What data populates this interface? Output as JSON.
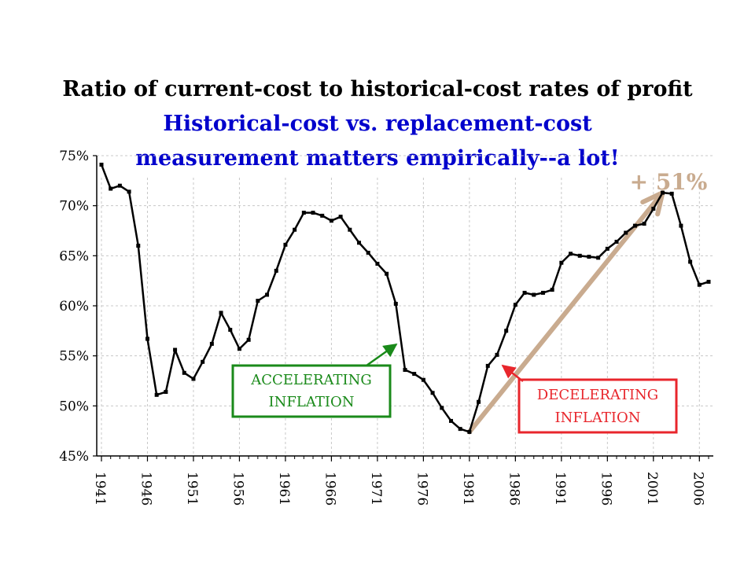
{
  "title": "Ratio of current-cost to historical-cost rates of profit",
  "subtitle_line1": "Historical-cost vs. replacement-cost",
  "subtitle_line2": "measurement matters empirically--a lot!",
  "colors": {
    "title": "#000000",
    "subtitle": "#0000cc",
    "accelerating": "#1a8a1a",
    "decelerating": "#e8262c",
    "trend_arrow": "#c9ab8f",
    "line": "#000000"
  },
  "annotations": {
    "accelerating_line1": "ACCELERATING",
    "accelerating_line2": "INFLATION",
    "decelerating_line1": "DECELERATING",
    "decelerating_line2": "INFLATION",
    "trend_label": "+ 51%"
  },
  "chart_data": {
    "type": "line",
    "title": "Ratio of current-cost to historical-cost rates of profit",
    "xlabel": "",
    "ylabel": "",
    "xlim": [
      1941,
      2007
    ],
    "ylim": [
      45,
      75
    ],
    "yticks": [
      "45%",
      "50%",
      "55%",
      "60%",
      "65%",
      "70%",
      "75%"
    ],
    "ytick_values": [
      45,
      50,
      55,
      60,
      65,
      70,
      75
    ],
    "xticks": [
      "1941",
      "1946",
      "1951",
      "1956",
      "1961",
      "1966",
      "1971",
      "1976",
      "1981",
      "1986",
      "1991",
      "1996",
      "2001",
      "2006"
    ],
    "xtick_values": [
      1941,
      1946,
      1951,
      1956,
      1961,
      1966,
      1971,
      1976,
      1981,
      1986,
      1991,
      1996,
      2001,
      2006
    ],
    "grid": true,
    "series": [
      {
        "x": [
          1941,
          1942,
          1943,
          1944,
          1945,
          1946,
          1947,
          1948,
          1949,
          1950,
          1951,
          1952,
          1953,
          1954,
          1955,
          1956,
          1957,
          1958,
          1959,
          1960,
          1961,
          1962,
          1963,
          1964,
          1965,
          1966,
          1967,
          1968,
          1969,
          1970,
          1971,
          1972,
          1973,
          1974,
          1975,
          1976,
          1977,
          1978,
          1979,
          1980,
          1981,
          1982,
          1983,
          1984,
          1985,
          1986,
          1987,
          1988,
          1989,
          1990,
          1991,
          1992,
          1993,
          1994,
          1995,
          1996,
          1997,
          1998,
          1999,
          2000,
          2001,
          2002,
          2003,
          2004,
          2005,
          2006,
          2007
        ],
        "values": [
          74.1,
          71.7,
          72.0,
          71.4,
          66.0,
          56.7,
          51.1,
          51.4,
          55.6,
          53.3,
          52.7,
          54.4,
          56.2,
          59.3,
          57.6,
          55.7,
          56.6,
          60.5,
          61.1,
          63.5,
          66.1,
          67.6,
          69.3,
          69.3,
          69.0,
          68.5,
          68.9,
          67.6,
          66.3,
          65.3,
          64.2,
          63.2,
          60.2,
          53.6,
          53.2,
          52.6,
          51.3,
          49.8,
          48.5,
          47.7,
          47.4,
          50.4,
          54.0,
          55.1,
          57.5,
          60.1,
          61.3,
          61.1,
          61.3,
          61.6,
          64.3,
          65.2,
          65.0,
          64.9,
          64.8,
          65.7,
          66.4,
          67.3,
          68.0,
          68.2,
          69.7,
          71.3,
          71.2,
          68.0,
          64.4,
          62.1,
          62.4
        ]
      }
    ],
    "annotations": [
      {
        "text": "ACCELERATING INFLATION",
        "points_to": [
          1974,
          56.3
        ]
      },
      {
        "text": "DECELERATING INFLATION",
        "points_to": [
          1984,
          54.0
        ]
      },
      {
        "text": "+ 51%",
        "trend_from": [
          1981,
          47.4
        ],
        "trend_to": [
          2002,
          71.3
        ]
      }
    ]
  }
}
